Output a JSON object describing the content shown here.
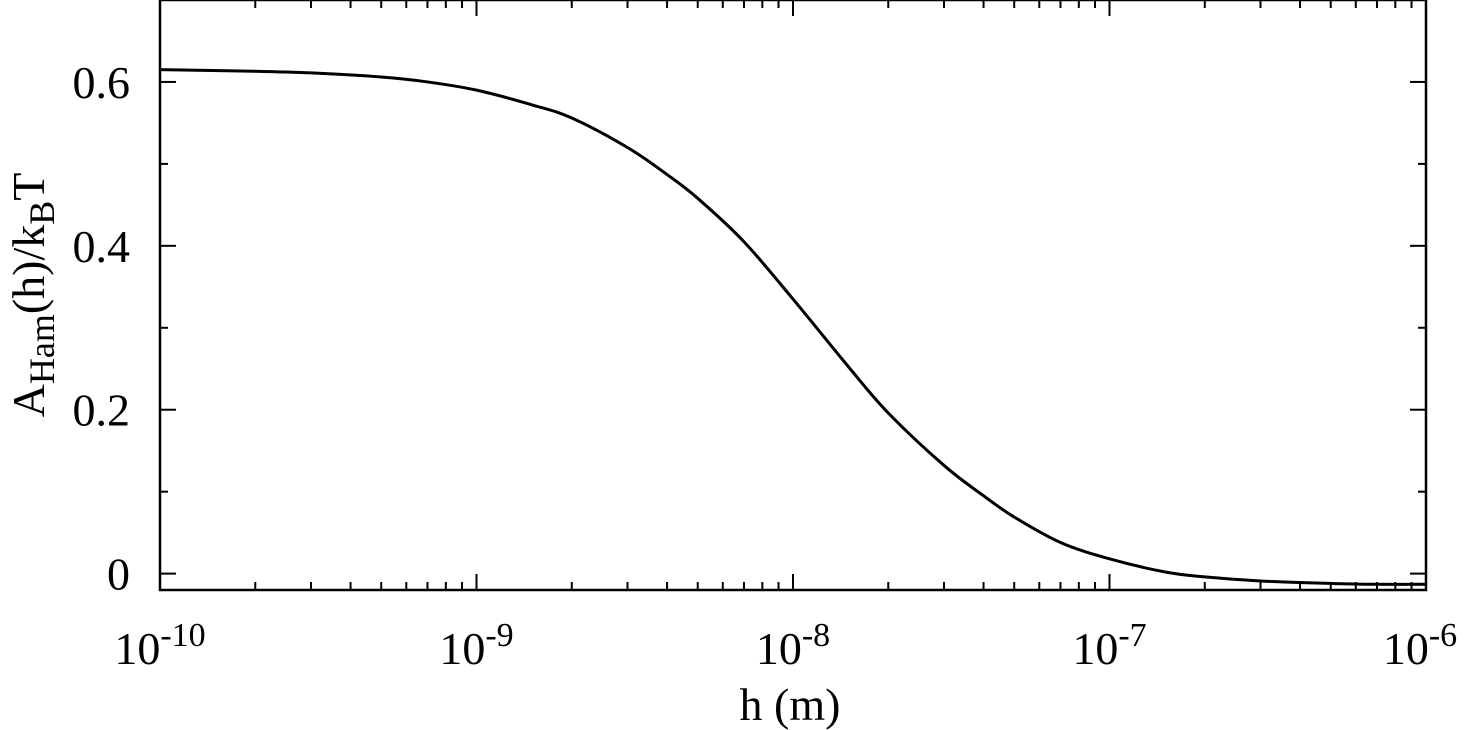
{
  "chart_data": {
    "type": "line",
    "title": "",
    "x_scale": "log",
    "xlim": [
      1e-10,
      1e-06
    ],
    "ylim": [
      -0.02,
      0.7
    ],
    "xlabel": "h (m)",
    "ylabel": {
      "main": "A",
      "sub": "Ham",
      "mid": "(h)/k",
      "sub2": "B",
      "end": "T"
    },
    "x_ticks": [
      {
        "value": 1e-10,
        "base": "10",
        "exp": "-10"
      },
      {
        "value": 1e-09,
        "base": "10",
        "exp": "-9"
      },
      {
        "value": 1e-08,
        "base": "10",
        "exp": "-8"
      },
      {
        "value": 1e-07,
        "base": "10",
        "exp": "-7"
      },
      {
        "value": 1e-06,
        "base": "10",
        "exp": "-6"
      }
    ],
    "y_ticks": [
      {
        "value": 0,
        "label": "0"
      },
      {
        "value": 0.2,
        "label": "0.2"
      },
      {
        "value": 0.4,
        "label": "0.4"
      },
      {
        "value": 0.6,
        "label": "0.6"
      }
    ],
    "grid": false,
    "line_color": "#000000",
    "series": [
      {
        "x": [
          1e-10,
          2e-10,
          3e-10,
          5e-10,
          7e-10,
          1e-09,
          1.5e-09,
          2e-09,
          3e-09,
          4e-09,
          5e-09,
          7e-09,
          1e-08,
          1.5e-08,
          2e-08,
          3e-08,
          4e-08,
          5e-08,
          7e-08,
          1e-07,
          1.5e-07,
          2e-07,
          3e-07,
          5e-07,
          7e-07,
          1e-06
        ],
        "y": [
          0.615,
          0.613,
          0.611,
          0.606,
          0.6,
          0.59,
          0.572,
          0.556,
          0.52,
          0.487,
          0.458,
          0.405,
          0.335,
          0.252,
          0.196,
          0.132,
          0.095,
          0.069,
          0.038,
          0.018,
          0.002,
          -0.004,
          -0.009,
          -0.012,
          -0.013,
          -0.013
        ]
      }
    ]
  }
}
